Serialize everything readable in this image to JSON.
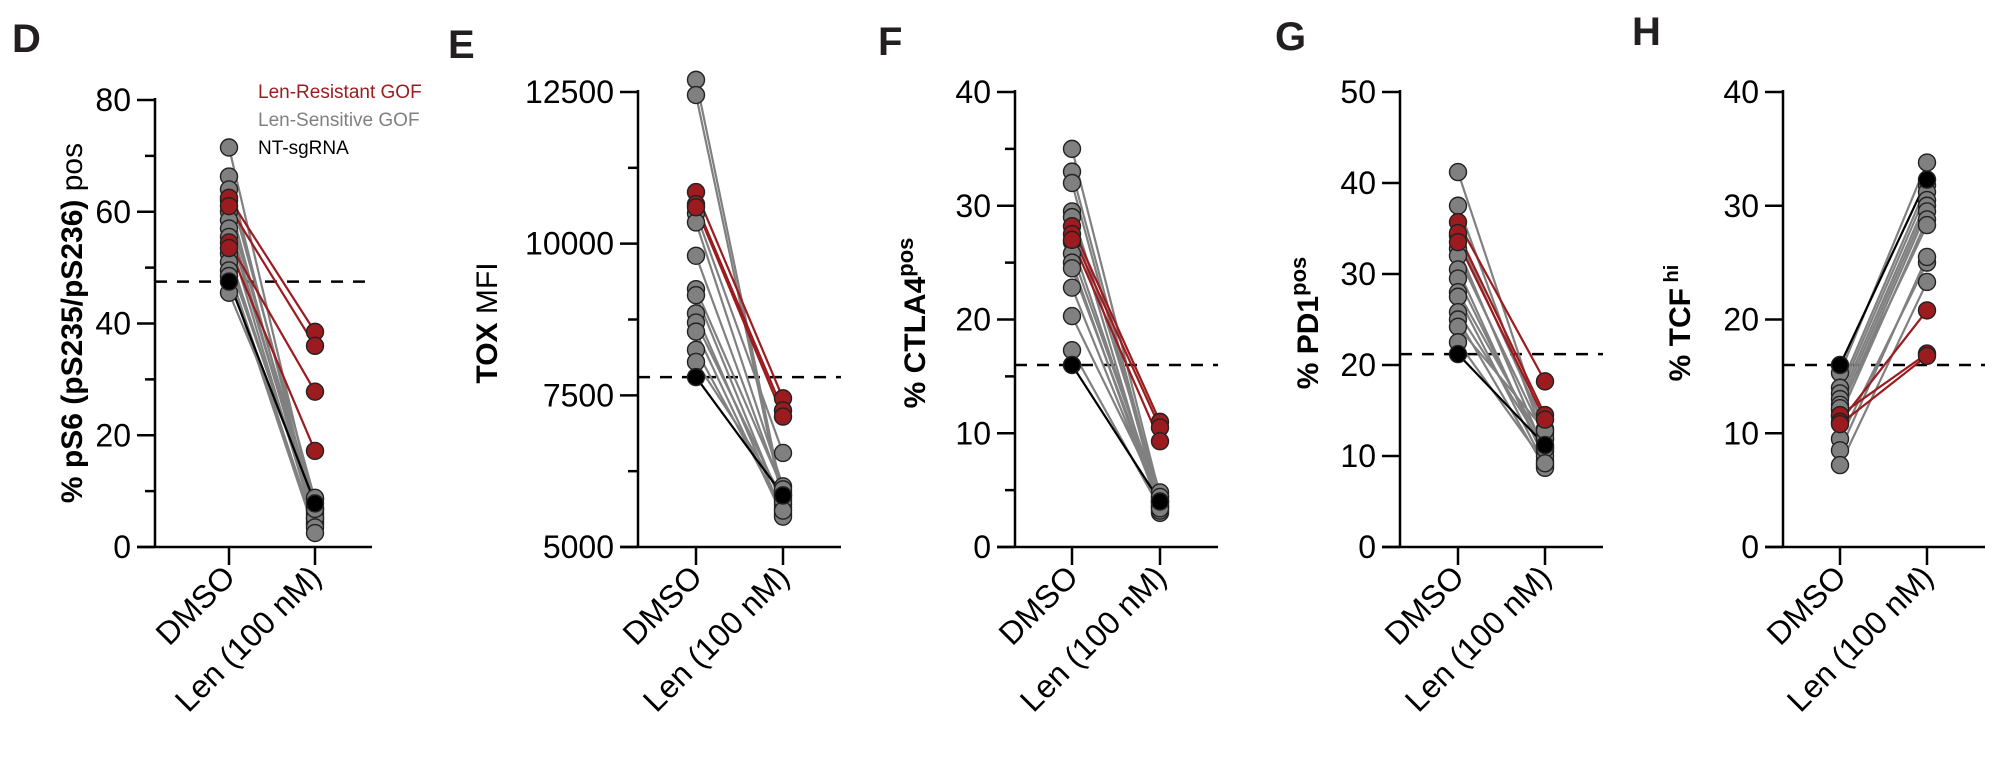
{
  "colors": {
    "resistant": "#9b1b1f",
    "sensitive": "#808080",
    "nt": "#000000",
    "axis": "#000000"
  },
  "legend": [
    {
      "label": "Len-Resistant GOF",
      "group": "resistant"
    },
    {
      "label": "Len-Sensitive GOF",
      "group": "sensitive"
    },
    {
      "label": "NT-sgRNA",
      "group": "nt"
    }
  ],
  "chart_data": [
    {
      "panel": "D",
      "type": "scatter",
      "subtype": "paired-before-after",
      "ylabel_main": "% pS6 (pS235/pS236)",
      "ylabel_sup": "pos",
      "ylabel_sup_style": "inline",
      "ylabel_bold_main": true,
      "categories": [
        "DMSO",
        "Len (100 nM)"
      ],
      "ylim": [
        0,
        80
      ],
      "yticks": [
        0,
        20,
        40,
        60,
        80
      ],
      "yminor": [
        10,
        30,
        50,
        70
      ],
      "ytick_labels": [
        "0",
        "20",
        "40",
        "60",
        "80"
      ],
      "reference_line": 47.5,
      "legend_position": "top-right",
      "pairs": [
        {
          "group": "sensitive",
          "dmso": 71.5,
          "len": 6.5
        },
        {
          "group": "sensitive",
          "dmso": 66.3,
          "len": 5.5
        },
        {
          "group": "sensitive",
          "dmso": 64.0,
          "len": 8.5
        },
        {
          "group": "resistant",
          "dmso": 62.5,
          "len": 38.5
        },
        {
          "group": "sensitive",
          "dmso": 62.0,
          "len": 4.5
        },
        {
          "group": "resistant",
          "dmso": 61.0,
          "len": 36.0
        },
        {
          "group": "sensitive",
          "dmso": 60.0,
          "len": 7.0
        },
        {
          "group": "sensitive",
          "dmso": 58.5,
          "len": 5.0
        },
        {
          "group": "sensitive",
          "dmso": 57.0,
          "len": 6.0
        },
        {
          "group": "sensitive",
          "dmso": 55.5,
          "len": 4.0
        },
        {
          "group": "resistant",
          "dmso": 54.5,
          "len": 27.8
        },
        {
          "group": "resistant",
          "dmso": 53.5,
          "len": 17.2
        },
        {
          "group": "sensitive",
          "dmso": 52.5,
          "len": 5.2
        },
        {
          "group": "sensitive",
          "dmso": 51.0,
          "len": 6.8
        },
        {
          "group": "sensitive",
          "dmso": 49.5,
          "len": 3.5
        },
        {
          "group": "sensitive",
          "dmso": 48.5,
          "len": 2.5
        },
        {
          "group": "nt",
          "dmso": 47.5,
          "len": 7.8
        },
        {
          "group": "sensitive",
          "dmso": 45.5,
          "len": 8.8
        }
      ]
    },
    {
      "panel": "E",
      "type": "scatter",
      "subtype": "paired-before-after",
      "ylabel_main": "TOX",
      "ylabel_rest": " MFI",
      "ylabel_sup": "",
      "ylabel_sup_style": "none",
      "ylabel_bold_main": true,
      "categories": [
        "DMSO",
        "Len (100 nM)"
      ],
      "ylim": [
        5000,
        13000
      ],
      "yticks": [
        5000,
        7500,
        10000,
        12500
      ],
      "yminor": [
        6250,
        8750,
        11250
      ],
      "ytick_labels": [
        "5000",
        "7500",
        "10000",
        "12500"
      ],
      "reference_line": 7800,
      "pairs": [
        {
          "group": "sensitive",
          "dmso": 12700,
          "len": 5800
        },
        {
          "group": "sensitive",
          "dmso": 12450,
          "len": 5700
        },
        {
          "group": "resistant",
          "dmso": 10850,
          "len": 7450
        },
        {
          "group": "resistant",
          "dmso": 10650,
          "len": 7250
        },
        {
          "group": "resistant",
          "dmso": 10600,
          "len": 7150
        },
        {
          "group": "sensitive",
          "dmso": 10500,
          "len": 6550
        },
        {
          "group": "sensitive",
          "dmso": 10350,
          "len": 6000
        },
        {
          "group": "sensitive",
          "dmso": 9800,
          "len": 5900
        },
        {
          "group": "sensitive",
          "dmso": 9250,
          "len": 5950
        },
        {
          "group": "sensitive",
          "dmso": 9150,
          "len": 5650
        },
        {
          "group": "sensitive",
          "dmso": 8850,
          "len": 5550
        },
        {
          "group": "sensitive",
          "dmso": 8700,
          "len": 5750
        },
        {
          "group": "sensitive",
          "dmso": 8550,
          "len": 5500
        },
        {
          "group": "sensitive",
          "dmso": 8250,
          "len": 5600
        },
        {
          "group": "sensitive",
          "dmso": 8050,
          "len": 5850
        },
        {
          "group": "nt",
          "dmso": 7800,
          "len": 5850
        }
      ]
    },
    {
      "panel": "F",
      "type": "scatter",
      "subtype": "paired-before-after",
      "ylabel_main": "% CTLA4",
      "ylabel_sup": "pos",
      "ylabel_sup_style": "superscript",
      "ylabel_bold_main": true,
      "categories": [
        "DMSO",
        "Len (100 nM)"
      ],
      "ylim": [
        0,
        40
      ],
      "yticks": [
        0,
        10,
        20,
        30,
        40
      ],
      "yminor": [
        5,
        15,
        25,
        35
      ],
      "ytick_labels": [
        "0",
        "10",
        "20",
        "30",
        "40"
      ],
      "reference_line": 16,
      "pairs": [
        {
          "group": "sensitive",
          "dmso": 35.0,
          "len": 4.5
        },
        {
          "group": "sensitive",
          "dmso": 33.0,
          "len": 4.0
        },
        {
          "group": "sensitive",
          "dmso": 32.0,
          "len": 3.5
        },
        {
          "group": "sensitive",
          "dmso": 29.5,
          "len": 4.8
        },
        {
          "group": "sensitive",
          "dmso": 29.0,
          "len": 3.0
        },
        {
          "group": "resistant",
          "dmso": 28.2,
          "len": 11.0
        },
        {
          "group": "resistant",
          "dmso": 27.5,
          "len": 10.5
        },
        {
          "group": "resistant",
          "dmso": 27.0,
          "len": 9.3
        },
        {
          "group": "sensitive",
          "dmso": 26.8,
          "len": 3.8
        },
        {
          "group": "sensitive",
          "dmso": 25.8,
          "len": 4.2
        },
        {
          "group": "sensitive",
          "dmso": 25.0,
          "len": 3.2
        },
        {
          "group": "sensitive",
          "dmso": 24.5,
          "len": 4.0
        },
        {
          "group": "sensitive",
          "dmso": 22.8,
          "len": 3.6
        },
        {
          "group": "sensitive",
          "dmso": 20.3,
          "len": 4.4
        },
        {
          "group": "sensitive",
          "dmso": 17.3,
          "len": 3.4
        },
        {
          "group": "nt",
          "dmso": 16.0,
          "len": 4.0
        }
      ]
    },
    {
      "panel": "G",
      "type": "scatter",
      "subtype": "paired-before-after",
      "ylabel_main": "% PD1",
      "ylabel_sup": "pos",
      "ylabel_sup_style": "superscript",
      "ylabel_bold_main": true,
      "categories": [
        "DMSO",
        "Len (100 nM)"
      ],
      "ylim": [
        0,
        50
      ],
      "yticks": [
        0,
        10,
        20,
        30,
        40,
        50
      ],
      "yminor": [],
      "ytick_labels": [
        "0",
        "10",
        "20",
        "30",
        "40",
        "50"
      ],
      "reference_line": 21.2,
      "pairs": [
        {
          "group": "sensitive",
          "dmso": 41.2,
          "len": 12.5
        },
        {
          "group": "sensitive",
          "dmso": 37.5,
          "len": 11.8
        },
        {
          "group": "resistant",
          "dmso": 35.7,
          "len": 18.2
        },
        {
          "group": "resistant",
          "dmso": 34.5,
          "len": 14.5
        },
        {
          "group": "sensitive",
          "dmso": 34.2,
          "len": 13.0
        },
        {
          "group": "resistant",
          "dmso": 33.5,
          "len": 14.0
        },
        {
          "group": "sensitive",
          "dmso": 32.8,
          "len": 10.5
        },
        {
          "group": "sensitive",
          "dmso": 32.0,
          "len": 12.0
        },
        {
          "group": "sensitive",
          "dmso": 30.5,
          "len": 9.5
        },
        {
          "group": "sensitive",
          "dmso": 29.5,
          "len": 10.0
        },
        {
          "group": "sensitive",
          "dmso": 28.0,
          "len": 11.0
        },
        {
          "group": "sensitive",
          "dmso": 27.5,
          "len": 9.0
        },
        {
          "group": "sensitive",
          "dmso": 25.8,
          "len": 10.8
        },
        {
          "group": "sensitive",
          "dmso": 25.0,
          "len": 8.7
        },
        {
          "group": "sensitive",
          "dmso": 24.2,
          "len": 12.8
        },
        {
          "group": "sensitive",
          "dmso": 22.5,
          "len": 9.2
        },
        {
          "group": "nt",
          "dmso": 21.2,
          "len": 11.2
        }
      ]
    },
    {
      "panel": "H",
      "type": "scatter",
      "subtype": "paired-before-after",
      "ylabel_main": "% TCF",
      "ylabel_sup": "hi",
      "ylabel_sup_style": "superscript-small",
      "ylabel_bold_main": true,
      "categories": [
        "DMSO",
        "Len (100 nM)"
      ],
      "ylim": [
        0,
        40
      ],
      "yticks": [
        0,
        10,
        20,
        30,
        40
      ],
      "yminor": [],
      "ytick_labels": [
        "0",
        "10",
        "20",
        "30",
        "40"
      ],
      "reference_line": 16,
      "pairs": [
        {
          "group": "nt",
          "dmso": 16.0,
          "len": 32.3
        },
        {
          "group": "sensitive",
          "dmso": 15.3,
          "len": 33.8
        },
        {
          "group": "sensitive",
          "dmso": 14.0,
          "len": 31.8
        },
        {
          "group": "sensitive",
          "dmso": 13.5,
          "len": 31.2
        },
        {
          "group": "sensitive",
          "dmso": 13.0,
          "len": 30.5
        },
        {
          "group": "sensitive",
          "dmso": 12.5,
          "len": 30.0
        },
        {
          "group": "sensitive",
          "dmso": 12.0,
          "len": 29.5
        },
        {
          "group": "resistant",
          "dmso": 11.6,
          "len": 17.0
        },
        {
          "group": "sensitive",
          "dmso": 11.5,
          "len": 28.8
        },
        {
          "group": "resistant",
          "dmso": 11.0,
          "len": 20.8
        },
        {
          "group": "resistant",
          "dmso": 10.8,
          "len": 16.8
        },
        {
          "group": "sensitive",
          "dmso": 12.2,
          "len": 28.3
        },
        {
          "group": "sensitive",
          "dmso": 9.5,
          "len": 25.0
        },
        {
          "group": "sensitive",
          "dmso": 8.5,
          "len": 25.5
        },
        {
          "group": "sensitive",
          "dmso": 7.2,
          "len": 23.3
        }
      ]
    }
  ]
}
